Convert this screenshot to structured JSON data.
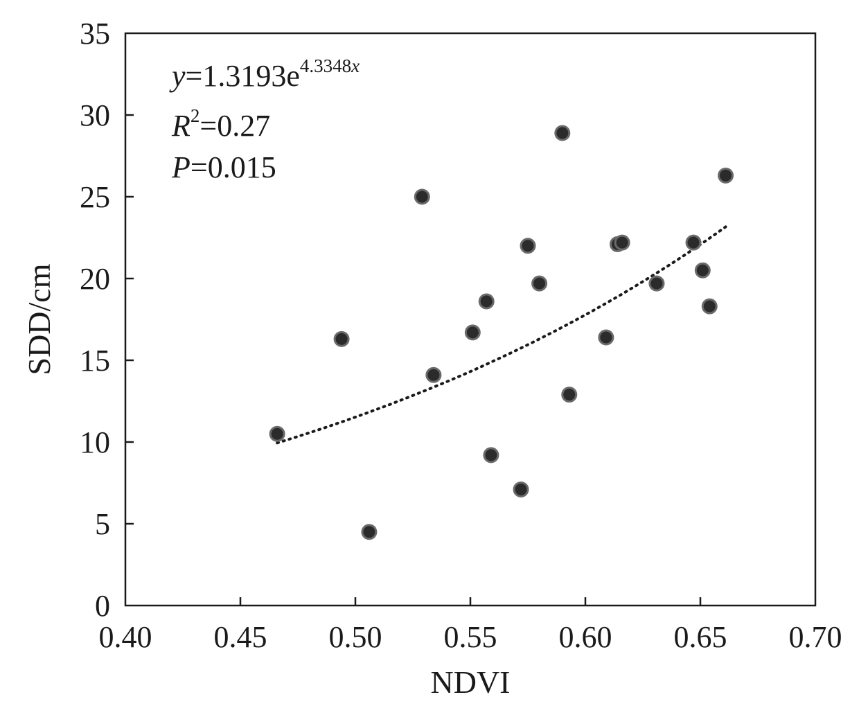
{
  "chart_data": {
    "type": "scatter",
    "title": "",
    "xlabel": "NDVI",
    "ylabel": "SDD/cm",
    "xlim": [
      0.4,
      0.7
    ],
    "ylim": [
      0,
      35
    ],
    "xticks": [
      "0.40",
      "0.45",
      "0.50",
      "0.55",
      "0.60",
      "0.65",
      "0.70"
    ],
    "yticks": [
      "0",
      "5",
      "10",
      "15",
      "20",
      "25",
      "30",
      "35"
    ],
    "grid": false,
    "points": [
      {
        "x": 0.466,
        "y": 10.5
      },
      {
        "x": 0.494,
        "y": 16.3
      },
      {
        "x": 0.506,
        "y": 4.5
      },
      {
        "x": 0.529,
        "y": 25.0
      },
      {
        "x": 0.534,
        "y": 14.1
      },
      {
        "x": 0.551,
        "y": 16.7
      },
      {
        "x": 0.557,
        "y": 18.6
      },
      {
        "x": 0.559,
        "y": 9.2
      },
      {
        "x": 0.572,
        "y": 7.1
      },
      {
        "x": 0.575,
        "y": 22.0
      },
      {
        "x": 0.58,
        "y": 19.7
      },
      {
        "x": 0.59,
        "y": 28.9
      },
      {
        "x": 0.593,
        "y": 12.9
      },
      {
        "x": 0.609,
        "y": 16.4
      },
      {
        "x": 0.614,
        "y": 22.1
      },
      {
        "x": 0.616,
        "y": 22.2
      },
      {
        "x": 0.631,
        "y": 19.7
      },
      {
        "x": 0.647,
        "y": 22.2
      },
      {
        "x": 0.651,
        "y": 20.5
      },
      {
        "x": 0.654,
        "y": 18.3
      },
      {
        "x": 0.661,
        "y": 26.3
      }
    ],
    "trendline": {
      "type": "exponential",
      "a": 1.3193,
      "b": 4.3348,
      "x_range": [
        0.466,
        0.661
      ]
    },
    "annotations": {
      "equation": {
        "var": "y",
        "eq": "=1.3193e",
        "exp_value": "4.3348",
        "exp_var": "x"
      },
      "r2": {
        "var": "R",
        "sup": "2",
        "eq": "=0.27"
      },
      "p": {
        "var": "P",
        "eq": "=0.015"
      }
    }
  }
}
